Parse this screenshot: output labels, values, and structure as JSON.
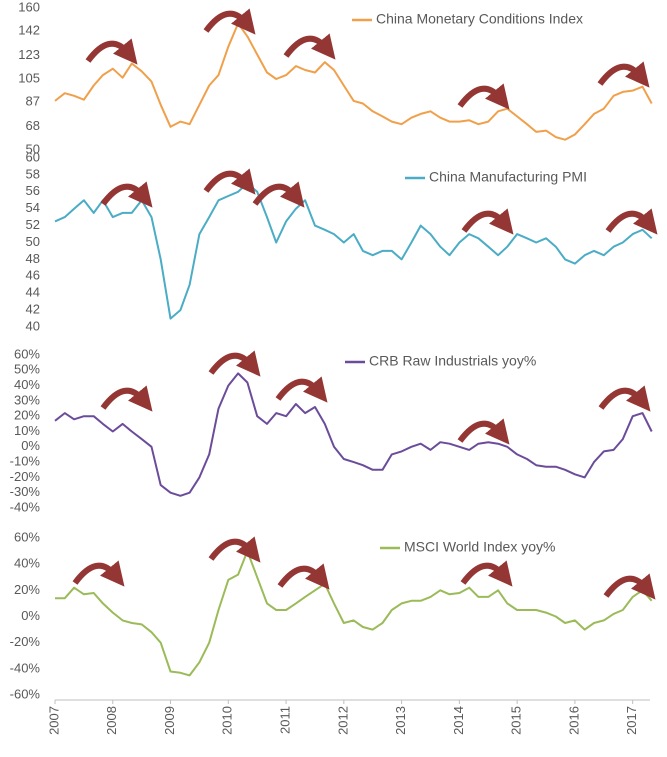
{
  "chart_data": [
    {
      "type": "line",
      "xlim": [
        2007,
        2017.3
      ],
      "ylim": [
        50,
        160
      ],
      "yticks": [
        50,
        68,
        87,
        105,
        123,
        142,
        160
      ],
      "x": [
        2007,
        2007.17,
        2007.33,
        2007.5,
        2007.67,
        2007.83,
        2008,
        2008.17,
        2008.33,
        2008.5,
        2008.67,
        2008.83,
        2009,
        2009.17,
        2009.33,
        2009.5,
        2009.67,
        2009.83,
        2010,
        2010.17,
        2010.33,
        2010.5,
        2010.67,
        2010.83,
        2011,
        2011.17,
        2011.33,
        2011.5,
        2011.67,
        2011.83,
        2012,
        2012.17,
        2012.33,
        2012.5,
        2012.67,
        2012.83,
        2013,
        2013.17,
        2013.33,
        2013.5,
        2013.67,
        2013.83,
        2014,
        2014.17,
        2014.33,
        2014.5,
        2014.67,
        2014.83,
        2015,
        2015.17,
        2015.33,
        2015.5,
        2015.67,
        2015.83,
        2016,
        2016.17,
        2016.33,
        2016.5,
        2016.67,
        2016.83,
        2017,
        2017.17,
        2017.33
      ],
      "series": [
        {
          "name": "China Monetary Conditions Index",
          "color": "#f0a04b",
          "values": [
            88,
            94,
            92,
            89,
            100,
            108,
            113,
            106,
            117,
            111,
            103,
            85,
            68,
            72,
            70,
            85,
            100,
            108,
            130,
            148,
            138,
            124,
            110,
            105,
            108,
            115,
            112,
            110,
            118,
            112,
            100,
            88,
            86,
            80,
            76,
            72,
            70,
            75,
            78,
            80,
            75,
            72,
            72,
            73,
            70,
            72,
            80,
            82,
            76,
            70,
            64,
            65,
            60,
            58,
            62,
            70,
            78,
            82,
            92,
            95,
            96,
            99,
            86
          ]
        }
      ]
    },
    {
      "type": "line",
      "xlim": [
        2007,
        2017.3
      ],
      "ylim": [
        40,
        60
      ],
      "yticks": [
        40,
        42,
        44,
        46,
        48,
        50,
        52,
        54,
        56,
        58,
        60
      ],
      "x": [
        2007,
        2007.17,
        2007.33,
        2007.5,
        2007.67,
        2007.83,
        2008,
        2008.17,
        2008.33,
        2008.5,
        2008.67,
        2008.83,
        2009,
        2009.17,
        2009.33,
        2009.5,
        2009.67,
        2009.83,
        2010,
        2010.17,
        2010.33,
        2010.5,
        2010.67,
        2010.83,
        2011,
        2011.17,
        2011.33,
        2011.5,
        2011.67,
        2011.83,
        2012,
        2012.17,
        2012.33,
        2012.5,
        2012.67,
        2012.83,
        2013,
        2013.17,
        2013.33,
        2013.5,
        2013.67,
        2013.83,
        2014,
        2014.17,
        2014.33,
        2014.5,
        2014.67,
        2014.83,
        2015,
        2015.17,
        2015.33,
        2015.5,
        2015.67,
        2015.83,
        2016,
        2016.17,
        2016.33,
        2016.5,
        2016.67,
        2016.83,
        2017,
        2017.17,
        2017.33
      ],
      "series": [
        {
          "name": "China Manufacturing PMI",
          "color": "#4bacc6",
          "values": [
            52.5,
            53,
            54,
            55,
            53.5,
            55,
            53,
            53.5,
            53.5,
            55,
            53,
            48,
            41,
            42,
            45,
            51,
            53,
            55,
            55.5,
            56,
            57,
            56,
            53,
            50,
            52.5,
            54,
            55,
            52,
            51.5,
            51,
            50,
            51,
            49,
            48.5,
            49,
            49,
            48,
            50,
            52,
            51,
            49.5,
            48.5,
            50,
            51,
            50.5,
            49.5,
            48.5,
            49.5,
            51,
            50.5,
            50,
            50.5,
            49.5,
            48,
            47.5,
            48.5,
            49,
            48.5,
            49.5,
            50,
            51,
            51.5,
            50.5
          ]
        }
      ]
    },
    {
      "type": "line",
      "xlim": [
        2007,
        2017.3
      ],
      "ylim": [
        -40,
        60
      ],
      "yticks": [
        {
          "value": -40,
          "label": "-40%"
        },
        {
          "value": -30,
          "label": "-30%"
        },
        {
          "value": -20,
          "label": "-20%"
        },
        {
          "value": -10,
          "label": "-10%"
        },
        {
          "value": 0,
          "label": "0%"
        },
        {
          "value": 10,
          "label": "10%"
        },
        {
          "value": 20,
          "label": "20%"
        },
        {
          "value": 30,
          "label": "30%"
        },
        {
          "value": 40,
          "label": "40%"
        },
        {
          "value": 50,
          "label": "50%"
        },
        {
          "value": 60,
          "label": "60%"
        }
      ],
      "x": [
        2007,
        2007.17,
        2007.33,
        2007.5,
        2007.67,
        2007.83,
        2008,
        2008.17,
        2008.33,
        2008.5,
        2008.67,
        2008.83,
        2009,
        2009.17,
        2009.33,
        2009.5,
        2009.67,
        2009.83,
        2010,
        2010.17,
        2010.33,
        2010.5,
        2010.67,
        2010.83,
        2011,
        2011.17,
        2011.33,
        2011.5,
        2011.67,
        2011.83,
        2012,
        2012.17,
        2012.33,
        2012.5,
        2012.67,
        2012.83,
        2013,
        2013.17,
        2013.33,
        2013.5,
        2013.67,
        2013.83,
        2014,
        2014.17,
        2014.33,
        2014.5,
        2014.67,
        2014.83,
        2015,
        2015.17,
        2015.33,
        2015.5,
        2015.67,
        2015.83,
        2016,
        2016.17,
        2016.33,
        2016.5,
        2016.67,
        2016.83,
        2017,
        2017.17,
        2017.33
      ],
      "series": [
        {
          "name": "CRB Raw Industrials yoy%",
          "color": "#6b4c9a",
          "values": [
            17,
            22,
            18,
            20,
            20,
            15,
            10,
            15,
            10,
            5,
            0,
            -25,
            -30,
            -32,
            -30,
            -20,
            -5,
            25,
            40,
            48,
            42,
            20,
            15,
            22,
            20,
            28,
            22,
            26,
            15,
            0,
            -8,
            -10,
            -12,
            -15,
            -15,
            -5,
            -3,
            0,
            2,
            -2,
            3,
            2,
            0,
            -2,
            2,
            3,
            2,
            0,
            -5,
            -8,
            -12,
            -13,
            -13,
            -15,
            -18,
            -20,
            -10,
            -3,
            -2,
            5,
            20,
            22,
            10
          ]
        }
      ]
    },
    {
      "type": "line",
      "xlim": [
        2007,
        2017.3
      ],
      "ylim": [
        -60,
        60
      ],
      "yticks": [
        {
          "value": -60,
          "label": "-60%"
        },
        {
          "value": -40,
          "label": "-40%"
        },
        {
          "value": -20,
          "label": "-20%"
        },
        {
          "value": 0,
          "label": "0%"
        },
        {
          "value": 20,
          "label": "20%"
        },
        {
          "value": 40,
          "label": "40%"
        },
        {
          "value": 60,
          "label": "60%"
        }
      ],
      "xticks": [
        2007,
        2008,
        2009,
        2010,
        2011,
        2012,
        2013,
        2014,
        2015,
        2016,
        2017
      ],
      "x": [
        2007,
        2007.17,
        2007.33,
        2007.5,
        2007.67,
        2007.83,
        2008,
        2008.17,
        2008.33,
        2008.5,
        2008.67,
        2008.83,
        2009,
        2009.17,
        2009.33,
        2009.5,
        2009.67,
        2009.83,
        2010,
        2010.17,
        2010.33,
        2010.5,
        2010.67,
        2010.83,
        2011,
        2011.17,
        2011.33,
        2011.5,
        2011.67,
        2011.83,
        2012,
        2012.17,
        2012.33,
        2012.5,
        2012.67,
        2012.83,
        2013,
        2013.17,
        2013.33,
        2013.5,
        2013.67,
        2013.83,
        2014,
        2014.17,
        2014.33,
        2014.5,
        2014.67,
        2014.83,
        2015,
        2015.17,
        2015.33,
        2015.5,
        2015.67,
        2015.83,
        2016,
        2016.17,
        2016.33,
        2016.5,
        2016.67,
        2016.83,
        2017,
        2017.17,
        2017.33
      ],
      "series": [
        {
          "name": "MSCI World Index yoy%",
          "color": "#9bbb59",
          "values": [
            14,
            14,
            22,
            17,
            18,
            10,
            3,
            -3,
            -5,
            -6,
            -12,
            -20,
            -42,
            -43,
            -45,
            -35,
            -20,
            5,
            28,
            32,
            50,
            30,
            10,
            5,
            5,
            10,
            15,
            20,
            25,
            10,
            -5,
            -3,
            -8,
            -10,
            -5,
            5,
            10,
            12,
            12,
            15,
            20,
            17,
            18,
            22,
            15,
            15,
            20,
            10,
            5,
            5,
            5,
            3,
            0,
            -5,
            -3,
            -10,
            -5,
            -3,
            2,
            5,
            15,
            20,
            12
          ]
        }
      ]
    }
  ]
}
